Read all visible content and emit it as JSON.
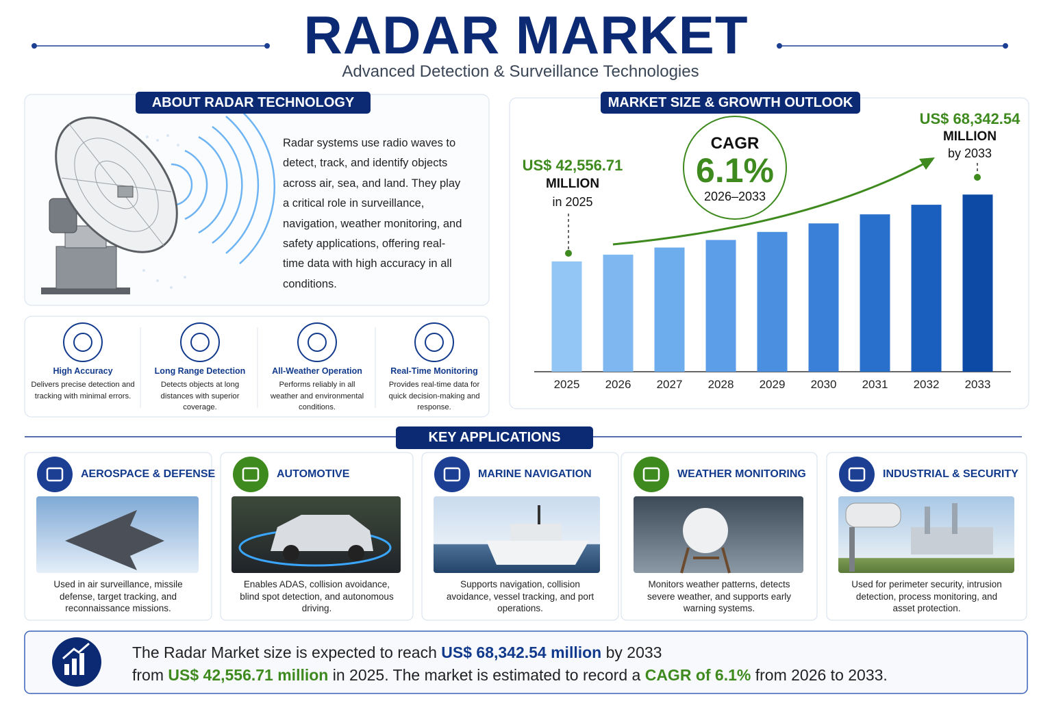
{
  "header": {
    "title": "RADAR MARKET",
    "subtitle": "Advanced Detection & Surveillance Technologies"
  },
  "about": {
    "heading": "ABOUT RADAR TECHNOLOGY",
    "text": "Radar systems use radio waves to detect, track, and identify objects across air, sea, and land. They play a critical role in surveillance, navigation, weather monitoring, and safety applications, offering real-time data with high accuracy in all conditions."
  },
  "features": [
    {
      "title": "High Accuracy",
      "text": "Delivers precise detection and tracking with minimal errors."
    },
    {
      "title": "Long Range Detection",
      "text": "Detects objects at long distances with superior coverage."
    },
    {
      "title": "All-Weather Operation",
      "text": "Performs reliably in all weather and environmental conditions."
    },
    {
      "title": "Real-Time Monitoring",
      "text": "Provides real-time data for quick decision-making and response."
    }
  ],
  "market": {
    "heading": "MARKET SIZE & GROWTH OUTLOOK",
    "start": {
      "amount": "US$ 42,556.71",
      "unit": "MILLION",
      "when": "in 2025"
    },
    "cagr": {
      "label": "CAGR",
      "value": "6.1%",
      "period": "2026–2033"
    },
    "end": {
      "amount": "US$ 68,342.54",
      "unit": "MILLION",
      "when": "by 2033"
    }
  },
  "chart_data": {
    "type": "bar",
    "categories": [
      "2025",
      "2026",
      "2027",
      "2028",
      "2029",
      "2030",
      "2031",
      "2032",
      "2033"
    ],
    "values": [
      42556.71,
      45152,
      47907,
      50829,
      53930,
      57219,
      60709,
      64413,
      68342.54
    ],
    "colors": [
      "#93c5f5",
      "#7fb8f1",
      "#6daced",
      "#5c9ee7",
      "#4a8fe0",
      "#3a80d8",
      "#296fcc",
      "#1b5fbe",
      "#0c4aa6"
    ],
    "ylim": [
      0,
      75000
    ]
  },
  "applications": {
    "heading": "KEY APPLICATIONS",
    "items": [
      {
        "title": "AEROSPACE & DEFENSE",
        "text": "Used in air surveillance, missile defense, target tracking, and reconnaissance missions."
      },
      {
        "title": "AUTOMOTIVE",
        "text": "Enables ADAS, collision avoidance, blind spot detection, and autonomous driving."
      },
      {
        "title": "MARINE NAVIGATION",
        "text": "Supports navigation, collision avoidance, vessel tracking, and port operations."
      },
      {
        "title": "WEATHER MONITORING",
        "text": "Monitors weather patterns, detects severe weather, and supports early warning systems."
      },
      {
        "title": "INDUSTRIAL & SECURITY",
        "text": "Used for perimeter security, intrusion detection, process monitoring, and asset protection."
      }
    ]
  },
  "summary": {
    "lines": [
      [
        {
          "text": "The Radar Market size is expected to reach "
        },
        {
          "text": "US$ 68,342.54 million",
          "style": "blue"
        },
        {
          "text": " by 2033"
        }
      ],
      [
        {
          "text": "from "
        },
        {
          "text": "US$ 42,556.71 million",
          "style": "green"
        },
        {
          "text": " in 2025. The market is estimated to record a "
        },
        {
          "text": "CAGR of 6.1%",
          "style": "green"
        },
        {
          "text": " from 2026 to 2033."
        }
      ]
    ]
  }
}
